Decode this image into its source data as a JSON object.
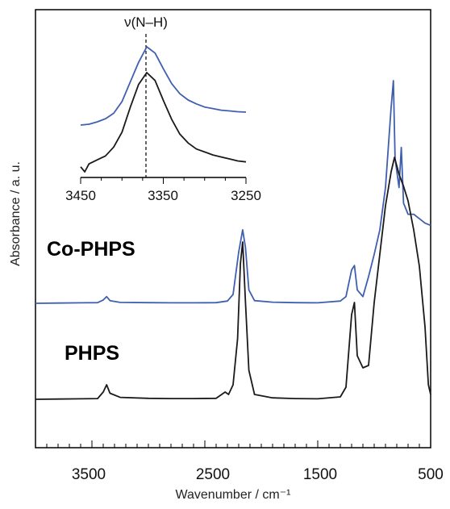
{
  "chart_data": [
    {
      "id": "main",
      "type": "line",
      "xlabel": "Wavenumber / cm⁻¹",
      "ylabel": "Absorbance / a. u.",
      "xlim": [
        4000,
        500
      ],
      "x_reversed": true,
      "y_ticks_shown": false,
      "xticks": [
        "3500",
        "2500",
        "1500",
        "500"
      ],
      "grid": false,
      "series": [
        {
          "name": "Co-PHPS",
          "color": "#3f5fb0",
          "points": [
            [
              4000,
              0.0
            ],
            [
              3800,
              0.001
            ],
            [
              3600,
              0.002
            ],
            [
              3450,
              0.003
            ],
            [
              3400,
              0.015
            ],
            [
              3370,
              0.03
            ],
            [
              3340,
              0.012
            ],
            [
              3250,
              0.004
            ],
            [
              3000,
              0.003
            ],
            [
              2800,
              0.002
            ],
            [
              2600,
              0.002
            ],
            [
              2400,
              0.003
            ],
            [
              2300,
              0.01
            ],
            [
              2250,
              0.04
            ],
            [
              2200,
              0.23
            ],
            [
              2165,
              0.33
            ],
            [
              2140,
              0.25
            ],
            [
              2110,
              0.06
            ],
            [
              2060,
              0.012
            ],
            [
              1900,
              0.005
            ],
            [
              1700,
              0.003
            ],
            [
              1500,
              0.002
            ],
            [
              1300,
              0.01
            ],
            [
              1250,
              0.03
            ],
            [
              1200,
              0.15
            ],
            [
              1175,
              0.17
            ],
            [
              1150,
              0.06
            ],
            [
              1100,
              0.03
            ],
            [
              1050,
              0.12
            ],
            [
              1000,
              0.22
            ],
            [
              950,
              0.33
            ],
            [
              900,
              0.52
            ],
            [
              850,
              0.88
            ],
            [
              830,
              1.0
            ],
            [
              815,
              0.65
            ],
            [
              780,
              0.52
            ],
            [
              760,
              0.7
            ],
            [
              740,
              0.45
            ],
            [
              700,
              0.4
            ],
            [
              650,
              0.4
            ],
            [
              600,
              0.38
            ],
            [
              550,
              0.36
            ],
            [
              500,
              0.35
            ]
          ]
        },
        {
          "name": "PHPS",
          "color": "#1a1a1a",
          "points": [
            [
              4000,
              0.0
            ],
            [
              3800,
              0.001
            ],
            [
              3600,
              0.002
            ],
            [
              3450,
              0.003
            ],
            [
              3400,
              0.03
            ],
            [
              3370,
              0.06
            ],
            [
              3340,
              0.025
            ],
            [
              3250,
              0.008
            ],
            [
              3000,
              0.004
            ],
            [
              2800,
              0.003
            ],
            [
              2600,
              0.003
            ],
            [
              2400,
              0.004
            ],
            [
              2320,
              0.03
            ],
            [
              2290,
              0.02
            ],
            [
              2250,
              0.06
            ],
            [
              2210,
              0.25
            ],
            [
              2185,
              0.56
            ],
            [
              2165,
              0.65
            ],
            [
              2140,
              0.4
            ],
            [
              2110,
              0.12
            ],
            [
              2060,
              0.02
            ],
            [
              1900,
              0.006
            ],
            [
              1700,
              0.003
            ],
            [
              1500,
              0.002
            ],
            [
              1300,
              0.01
            ],
            [
              1250,
              0.05
            ],
            [
              1200,
              0.35
            ],
            [
              1175,
              0.4
            ],
            [
              1150,
              0.18
            ],
            [
              1100,
              0.13
            ],
            [
              1050,
              0.14
            ],
            [
              1000,
              0.4
            ],
            [
              950,
              0.6
            ],
            [
              900,
              0.8
            ],
            [
              850,
              0.94
            ],
            [
              820,
              1.0
            ],
            [
              780,
              0.93
            ],
            [
              740,
              0.88
            ],
            [
              700,
              0.82
            ],
            [
              650,
              0.7
            ],
            [
              600,
              0.55
            ],
            [
              550,
              0.3
            ],
            [
              520,
              0.06
            ],
            [
              500,
              0.02
            ]
          ]
        }
      ],
      "annotations": [
        "Co-PHPS",
        "PHPS"
      ]
    },
    {
      "id": "inset",
      "type": "line",
      "xlim": [
        3450,
        3250
      ],
      "x_reversed": true,
      "xticks": [
        "3450",
        "3350",
        "3250"
      ],
      "y_ticks_shown": false,
      "marker_line": {
        "x": 3370,
        "label": "ν(N–H)",
        "style": "dashed"
      },
      "series": [
        {
          "name": "Co-PHPS",
          "color": "#3f5fb0",
          "points": [
            [
              3450,
              0.0
            ],
            [
              3440,
              0.01
            ],
            [
              3430,
              0.04
            ],
            [
              3420,
              0.08
            ],
            [
              3410,
              0.15
            ],
            [
              3400,
              0.3
            ],
            [
              3390,
              0.55
            ],
            [
              3380,
              0.8
            ],
            [
              3370,
              1.0
            ],
            [
              3360,
              0.92
            ],
            [
              3350,
              0.72
            ],
            [
              3340,
              0.53
            ],
            [
              3330,
              0.4
            ],
            [
              3320,
              0.32
            ],
            [
              3310,
              0.27
            ],
            [
              3300,
              0.23
            ],
            [
              3290,
              0.21
            ],
            [
              3280,
              0.19
            ],
            [
              3270,
              0.18
            ],
            [
              3260,
              0.17
            ],
            [
              3250,
              0.165
            ]
          ]
        },
        {
          "name": "PHPS",
          "color": "#1a1a1a",
          "points": [
            [
              3450,
              0.05
            ],
            [
              3445,
              0.0
            ],
            [
              3440,
              0.08
            ],
            [
              3430,
              0.12
            ],
            [
              3420,
              0.16
            ],
            [
              3410,
              0.25
            ],
            [
              3400,
              0.4
            ],
            [
              3390,
              0.65
            ],
            [
              3380,
              0.88
            ],
            [
              3370,
              1.0
            ],
            [
              3360,
              0.92
            ],
            [
              3350,
              0.72
            ],
            [
              3340,
              0.53
            ],
            [
              3330,
              0.38
            ],
            [
              3320,
              0.29
            ],
            [
              3310,
              0.23
            ],
            [
              3300,
              0.2
            ],
            [
              3290,
              0.17
            ],
            [
              3280,
              0.15
            ],
            [
              3270,
              0.13
            ],
            [
              3260,
              0.11
            ],
            [
              3250,
              0.1
            ]
          ]
        }
      ]
    }
  ]
}
